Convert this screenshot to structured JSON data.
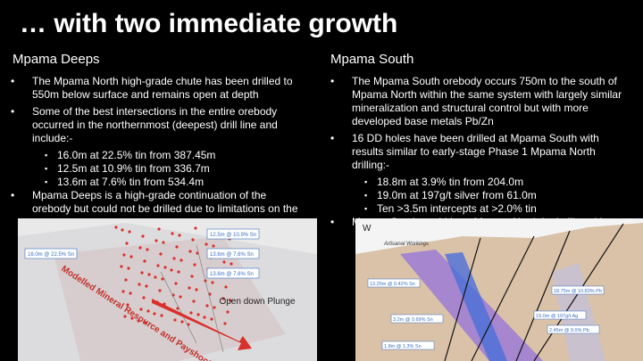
{
  "header": {
    "title": "… with two immediate growth"
  },
  "columns": [
    {
      "heading": "Mpama Deeps",
      "bullets": [
        {
          "text": "The Mpama North high-grade chute has been drilled to 550m below surface and remains open at depth",
          "sub": []
        },
        {
          "text": "Some of the best intersections in the entire orebody occurred in the northernmost (deepest) drill line and include:-",
          "sub": [
            "16.0m at 22.5% tin from 387.45m",
            "12.5m at 10.9% tin from 336.7m",
            "13.6m at 7.6% tin from 534.4m"
          ]
        },
        {
          "text": "Mpama Deeps is a high-grade continuation of the orebody but could not be drilled due to limitations on the",
          "sub": []
        }
      ]
    },
    {
      "heading": "Mpama South",
      "bullets": [
        {
          "text": "The Mpama South orebody occurs 750m to the south of Mpama North within the same system with largely similar mineralization and structural control but with more developed base metals Pb/Zn",
          "sub": []
        },
        {
          "text": "16 DD holes have been drilled at Mpama South with results similar to early-stage Phase 1 Mpama North drilling:-",
          "sub": [
            "18.8m at 3.9% tin from 204.0m",
            "19.0m at 197g/t silver from 61.0m",
            "Ten >3.5m intercepts at >2.0% tin"
          ]
        },
        {
          "text": "Mpama South could be a Mpama North lookalike with",
          "sub": []
        }
      ]
    }
  ],
  "figures": {
    "left": {
      "boxes": [
        "12.5m @ 10.9% Sn",
        "13.6m @ 7.6% Sn",
        "16.0m @ 22.5% Sn",
        "13.6m @ 7.6% Sn"
      ],
      "resource": "Modelled Mineral Resource and Payshoot",
      "plunge": "Open down Plunge"
    },
    "right": {
      "compass": "W",
      "workings": "Artisanal Workings",
      "labels": [
        "13.25m @ 0.42% Sn",
        "18.75m @ 10.83% Pb",
        "3.2m @ 0.69% Sn",
        "19.0m @ 197g/t Ag",
        "1.8m @ 1.3% Sn",
        "2.45m @ 9.0% Pb"
      ]
    }
  }
}
